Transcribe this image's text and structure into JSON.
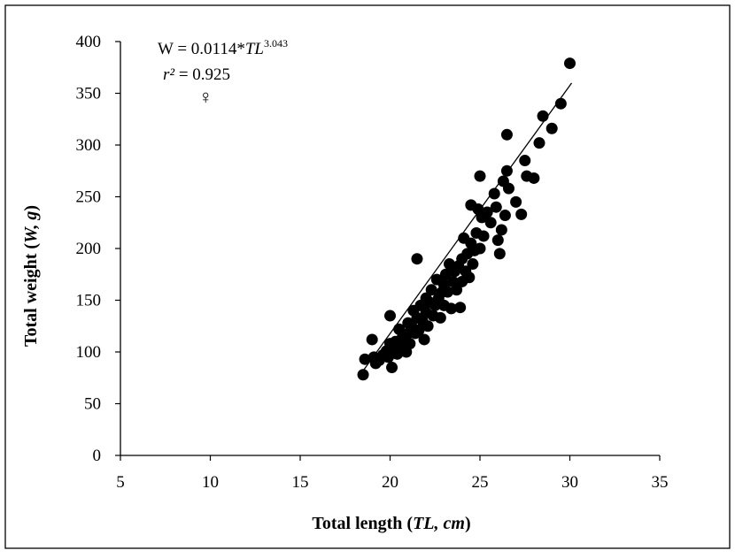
{
  "chart_data": {
    "type": "scatter",
    "title": "",
    "xlabel": {
      "main": "Total length (",
      "italic": "TL, cm",
      "end": ")"
    },
    "ylabel": {
      "main": "Total weight (",
      "italic": "W, g",
      "end": ")"
    },
    "xlim": [
      5,
      35
    ],
    "ylim": [
      0,
      400
    ],
    "xticks": [
      5,
      10,
      15,
      20,
      25,
      30,
      35
    ],
    "yticks": [
      0,
      50,
      100,
      150,
      200,
      250,
      300,
      350,
      400
    ],
    "grid": false,
    "legend": "none",
    "colors": {
      "points": "#000000",
      "trendline": "#000000",
      "border": "#000000"
    },
    "annotations": {
      "equation_lhs": "W = 0.0114*",
      "equation_var": "TL",
      "equation_exp": "3.043",
      "r2_var": "r²",
      "r2_value": " = 0.925",
      "symbol": "♀"
    },
    "trendline": {
      "a": 0.0114,
      "b": 3.043,
      "x_start": 18.5,
      "x_end": 30.1
    },
    "points": [
      [
        18.5,
        78
      ],
      [
        18.6,
        93
      ],
      [
        19.0,
        112
      ],
      [
        19.1,
        95
      ],
      [
        19.2,
        89
      ],
      [
        19.4,
        92
      ],
      [
        19.6,
        97
      ],
      [
        19.8,
        101
      ],
      [
        19.9,
        95
      ],
      [
        20.0,
        108
      ],
      [
        20.0,
        135
      ],
      [
        20.1,
        85
      ],
      [
        20.2,
        103
      ],
      [
        20.3,
        110
      ],
      [
        20.4,
        98
      ],
      [
        20.5,
        122
      ],
      [
        20.6,
        105
      ],
      [
        20.7,
        115
      ],
      [
        20.8,
        112
      ],
      [
        20.9,
        100
      ],
      [
        21.0,
        118
      ],
      [
        21.0,
        128
      ],
      [
        21.1,
        108
      ],
      [
        21.2,
        125
      ],
      [
        21.3,
        140
      ],
      [
        21.4,
        118
      ],
      [
        21.5,
        133
      ],
      [
        21.5,
        190
      ],
      [
        21.6,
        121
      ],
      [
        21.7,
        145
      ],
      [
        21.8,
        130
      ],
      [
        21.9,
        112
      ],
      [
        22.0,
        138
      ],
      [
        22.0,
        152
      ],
      [
        22.1,
        125
      ],
      [
        22.2,
        148
      ],
      [
        22.3,
        160
      ],
      [
        22.4,
        135
      ],
      [
        22.5,
        145
      ],
      [
        22.6,
        170
      ],
      [
        22.7,
        152
      ],
      [
        22.8,
        133
      ],
      [
        22.9,
        158
      ],
      [
        23.0,
        165
      ],
      [
        23.0,
        145
      ],
      [
        23.1,
        175
      ],
      [
        23.2,
        158
      ],
      [
        23.3,
        185
      ],
      [
        23.4,
        142
      ],
      [
        23.5,
        168
      ],
      [
        23.6,
        178
      ],
      [
        23.7,
        160
      ],
      [
        23.8,
        183
      ],
      [
        23.9,
        143
      ],
      [
        24.0,
        190
      ],
      [
        24.0,
        168
      ],
      [
        24.1,
        210
      ],
      [
        24.2,
        178
      ],
      [
        24.3,
        195
      ],
      [
        24.4,
        172
      ],
      [
        24.5,
        205
      ],
      [
        24.5,
        242
      ],
      [
        24.6,
        185
      ],
      [
        24.7,
        198
      ],
      [
        24.8,
        215
      ],
      [
        24.9,
        238
      ],
      [
        25.0,
        270
      ],
      [
        25.0,
        200
      ],
      [
        25.1,
        230
      ],
      [
        25.2,
        212
      ],
      [
        25.4,
        235
      ],
      [
        25.6,
        225
      ],
      [
        25.8,
        253
      ],
      [
        25.9,
        240
      ],
      [
        26.0,
        208
      ],
      [
        26.1,
        195
      ],
      [
        26.2,
        218
      ],
      [
        26.3,
        265
      ],
      [
        26.4,
        232
      ],
      [
        26.5,
        310
      ],
      [
        26.5,
        275
      ],
      [
        26.6,
        258
      ],
      [
        27.0,
        245
      ],
      [
        27.3,
        233
      ],
      [
        27.5,
        285
      ],
      [
        27.6,
        270
      ],
      [
        28.0,
        268
      ],
      [
        28.3,
        302
      ],
      [
        28.5,
        328
      ],
      [
        29.0,
        316
      ],
      [
        29.5,
        340
      ],
      [
        30.0,
        379
      ]
    ]
  }
}
